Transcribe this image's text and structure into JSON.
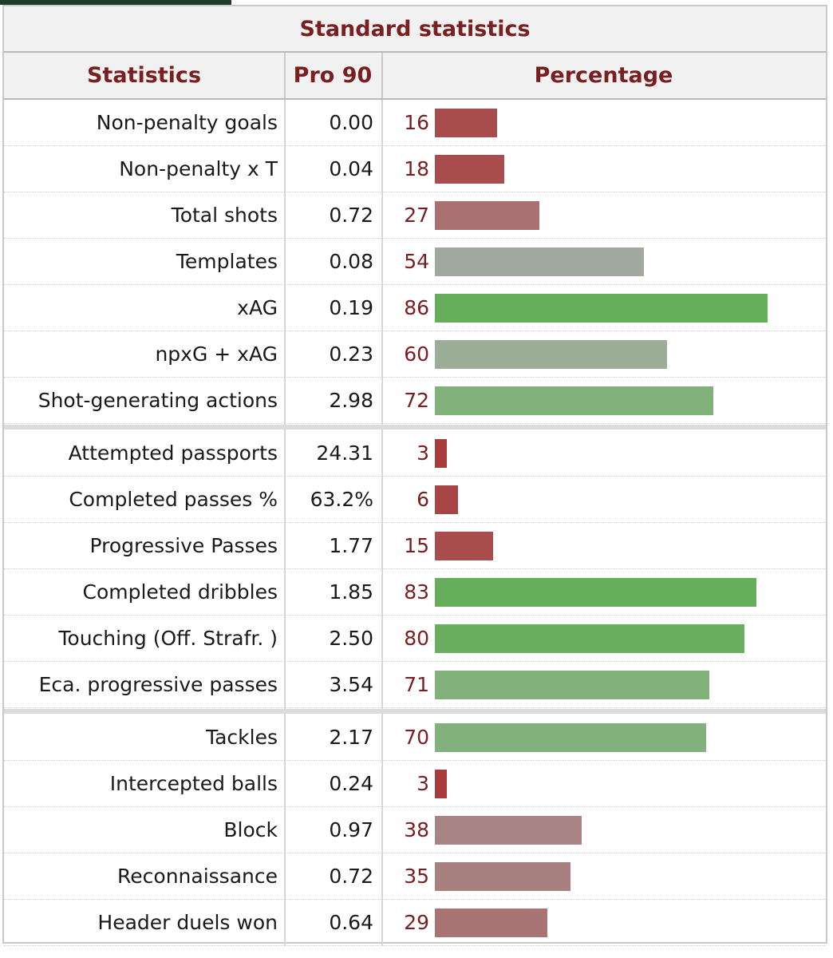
{
  "table": {
    "title": "Standard statistics",
    "headers": {
      "statistics": "Statistics",
      "per90": "Pro 90",
      "percentage": "Percentage"
    },
    "colors": {
      "low": "#a84a4a",
      "mid_low": "#a87878",
      "neutral": "#a0a89e",
      "high": "#66ad5c",
      "mid_high": "#84b17e"
    },
    "groups": [
      {
        "rows": [
          {
            "label": "Non-penalty goals",
            "per90": "0.00",
            "percentile": 16,
            "color": "#a84c4c"
          },
          {
            "label": "Non-penalty x T",
            "per90": "0.04",
            "percentile": 18,
            "color": "#a84c4c"
          },
          {
            "label": "Total shots",
            "per90": "0.72",
            "percentile": 27,
            "color": "#a87070"
          },
          {
            "label": "Templates",
            "per90": "0.08",
            "percentile": 54,
            "color": "#a1a99f"
          },
          {
            "label": "xAG",
            "per90": "0.19",
            "percentile": 86,
            "color": "#66ae5a"
          },
          {
            "label": "npxG + xAG",
            "per90": "0.23",
            "percentile": 60,
            "color": "#9cae98"
          },
          {
            "label": "Shot-generating actions",
            "per90": "2.98",
            "percentile": 72,
            "color": "#80b27a"
          }
        ]
      },
      {
        "rows": [
          {
            "label": "Attempted passports",
            "per90": "24.31",
            "percentile": 3,
            "color": "#a83c3c"
          },
          {
            "label": "Completed passes %",
            "per90": "63.2%",
            "percentile": 6,
            "color": "#a84444"
          },
          {
            "label": "Progressive Passes",
            "per90": "1.77",
            "percentile": 15,
            "color": "#a84c4c"
          },
          {
            "label": "Completed dribbles",
            "per90": "1.85",
            "percentile": 83,
            "color": "#66ad5c"
          },
          {
            "label": "Touching (Off. Strafr. )",
            "per90": "2.50",
            "percentile": 80,
            "color": "#6aae60"
          },
          {
            "label": "Eca. progressive passes",
            "per90": "3.54",
            "percentile": 71,
            "color": "#80b27a"
          }
        ]
      },
      {
        "rows": [
          {
            "label": "Tackles",
            "per90": "2.17",
            "percentile": 70,
            "color": "#82b27c"
          },
          {
            "label": "Intercepted balls",
            "per90": "0.24",
            "percentile": 3,
            "color": "#a83c3c"
          },
          {
            "label": "Block",
            "per90": "0.97",
            "percentile": 38,
            "color": "#a88484"
          },
          {
            "label": "Reconnaissance",
            "per90": "0.72",
            "percentile": 35,
            "color": "#a88080"
          },
          {
            "label": "Header duels won",
            "per90": "0.64",
            "percentile": 29,
            "color": "#a87474"
          }
        ]
      }
    ]
  }
}
